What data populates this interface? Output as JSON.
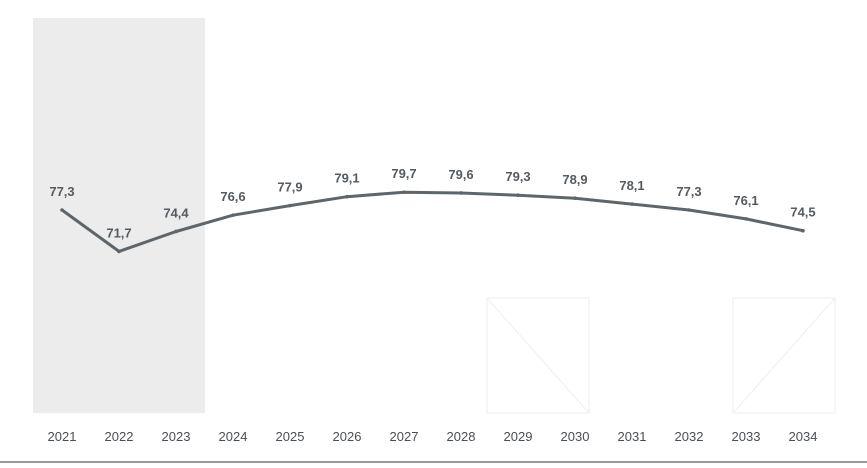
{
  "chart_data": {
    "type": "line",
    "title": "",
    "xlabel": "",
    "ylabel": "",
    "x": [
      "2021",
      "2022",
      "2023",
      "2024",
      "2025",
      "2026",
      "2027",
      "2028",
      "2029",
      "2030",
      "2031",
      "2032",
      "2033",
      "2034"
    ],
    "series": [
      {
        "values": [
          77.3,
          71.7,
          74.4,
          76.6,
          77.9,
          79.1,
          79.7,
          79.6,
          79.3,
          78.9,
          78.1,
          77.3,
          76.1,
          74.5
        ],
        "labels": [
          "77,3",
          "71,7",
          "74,4",
          "76,6",
          "77,9",
          "79,1",
          "79,7",
          "79,6",
          "79,3",
          "78,9",
          "78,1",
          "77,3",
          "76,1",
          "74,5"
        ]
      }
    ],
    "highlighted_range": [
      "2021",
      "2023"
    ],
    "grid": false,
    "legend": "none",
    "colors": {
      "line": "#5f666b",
      "highlight_band": "#ececec",
      "text": "#4f5559",
      "baseline": "#9a9a9a"
    }
  }
}
